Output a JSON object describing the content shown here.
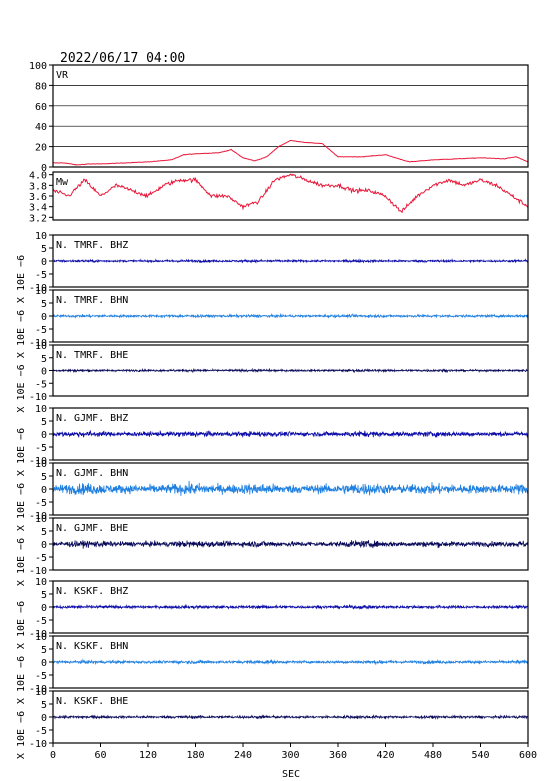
{
  "title": "2022/06/17 04:00",
  "xaxis": {
    "label": "SEC",
    "ticks": [
      0,
      60,
      120,
      180,
      240,
      300,
      360,
      420,
      480,
      540,
      600
    ],
    "range": [
      0,
      600
    ]
  },
  "colors": {
    "vr_mw": "#e8183a",
    "dark_blue": "#0a0aa8",
    "light_blue": "#1e7fe0",
    "navy": "#0a0a5a"
  },
  "chart_data": [
    {
      "type": "line",
      "panel": "vr",
      "label": "VR",
      "ylim": [
        0,
        100
      ],
      "yticks": [
        0,
        20,
        40,
        60,
        80,
        100
      ],
      "grid": true,
      "color": "#e8183a",
      "x": [
        0,
        15,
        30,
        45,
        60,
        90,
        120,
        150,
        165,
        180,
        210,
        225,
        240,
        255,
        270,
        285,
        300,
        320,
        340,
        360,
        390,
        420,
        450,
        480,
        510,
        540,
        570,
        585,
        600
      ],
      "values": [
        4,
        4,
        2,
        3,
        3,
        4,
        5,
        7,
        12,
        13,
        14,
        17,
        9,
        6,
        10,
        20,
        26,
        24,
        23,
        10,
        10,
        12,
        5,
        7,
        8,
        9,
        8,
        10,
        5
      ]
    },
    {
      "type": "line",
      "panel": "mw",
      "label": "Mw",
      "ylim": [
        3.15,
        4.05
      ],
      "yticks": [
        3.2,
        3.4,
        3.6,
        3.8,
        4.0
      ],
      "ytick_labels": [
        "3.2",
        "3.4",
        "3.6",
        "3.8",
        "4.0"
      ],
      "color": "#e8183a",
      "x": [
        0,
        20,
        40,
        60,
        80,
        100,
        120,
        140,
        160,
        180,
        200,
        220,
        240,
        260,
        280,
        300,
        320,
        340,
        360,
        380,
        400,
        420,
        440,
        460,
        480,
        500,
        520,
        540,
        560,
        580,
        600
      ],
      "values": [
        3.7,
        3.6,
        3.9,
        3.6,
        3.8,
        3.7,
        3.6,
        3.8,
        3.9,
        3.9,
        3.6,
        3.6,
        3.4,
        3.5,
        3.9,
        4.0,
        3.9,
        3.8,
        3.8,
        3.7,
        3.7,
        3.6,
        3.3,
        3.6,
        3.8,
        3.9,
        3.8,
        3.9,
        3.8,
        3.6,
        3.4
      ]
    },
    {
      "type": "line",
      "panel": "waveform",
      "label": "N. TMRF. BHZ",
      "ylabel": "X 10E −6",
      "ylim": [
        -10,
        10
      ],
      "yticks": [
        -10,
        -5,
        0,
        5,
        10
      ],
      "color": "#0a0aa8",
      "amplitude": 0.6
    },
    {
      "type": "line",
      "panel": "waveform",
      "label": "N. TMRF. BHN",
      "ylabel": "X 10E −6",
      "ylim": [
        -10,
        10
      ],
      "yticks": [
        -10,
        -5,
        0,
        5,
        10
      ],
      "color": "#1e7fe0",
      "amplitude": 0.7
    },
    {
      "type": "line",
      "panel": "waveform",
      "label": "N. TMRF. BHE",
      "ylabel": "X 10E −6",
      "ylim": [
        -10,
        10
      ],
      "yticks": [
        -10,
        -5,
        0,
        5,
        10
      ],
      "color": "#0a0a5a",
      "amplitude": 0.6
    },
    {
      "type": "line",
      "panel": "waveform",
      "label": "N. GJMF. BHZ",
      "ylabel": "X 10E −6",
      "ylim": [
        -10,
        10
      ],
      "yticks": [
        -10,
        -5,
        0,
        5,
        10
      ],
      "color": "#0a0aa8",
      "amplitude": 1.4
    },
    {
      "type": "line",
      "panel": "waveform",
      "label": "N. GJMF. BHN",
      "ylabel": "X 10E −6",
      "ylim": [
        -10,
        10
      ],
      "yticks": [
        -10,
        -5,
        0,
        5,
        10
      ],
      "color": "#1e7fe0",
      "amplitude": 2.8
    },
    {
      "type": "line",
      "panel": "waveform",
      "label": "N. GJMF. BHE",
      "ylabel": "X 10E −6",
      "ylim": [
        -10,
        10
      ],
      "yticks": [
        -10,
        -5,
        0,
        5,
        10
      ],
      "color": "#0a0a5a",
      "amplitude": 1.6
    },
    {
      "type": "line",
      "panel": "waveform",
      "label": "N. KSKF. BHZ",
      "ylabel": "X 10E −6",
      "ylim": [
        -10,
        10
      ],
      "yticks": [
        -10,
        -5,
        0,
        5,
        10
      ],
      "color": "#0a0aa8",
      "amplitude": 0.8
    },
    {
      "type": "line",
      "panel": "waveform",
      "label": "N. KSKF. BHN",
      "ylabel": "X 10E −6",
      "ylim": [
        -10,
        10
      ],
      "yticks": [
        -10,
        -5,
        0,
        5,
        10
      ],
      "color": "#1e7fe0",
      "amplitude": 0.8
    },
    {
      "type": "line",
      "panel": "waveform",
      "label": "N. KSKF. BHE",
      "ylabel": "X 10E −6",
      "ylim": [
        -10,
        10
      ],
      "yticks": [
        -10,
        -5,
        0,
        5,
        10
      ],
      "color": "#0a0a5a",
      "amplitude": 0.7
    }
  ]
}
